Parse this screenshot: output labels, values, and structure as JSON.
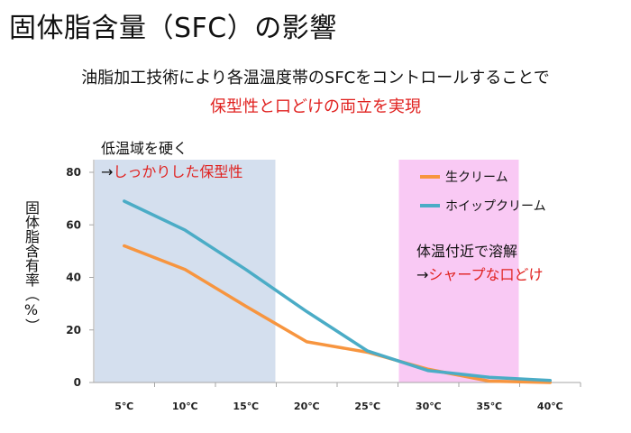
{
  "title": "固体脂含量（SFC）の影響",
  "subtitle_line1": "油脂加工技術により各温温度帯のSFCをコントロールすることで",
  "subtitle_line2": "保型性と口どけの両立を実現",
  "note_left": {
    "line1": "低温域を硬く",
    "arrow": "→",
    "highlight": "しっかりした保型性"
  },
  "note_right": {
    "line1": "体温付近で溶解",
    "arrow": "→",
    "highlight": "シャープな口どけ"
  },
  "colors": {
    "cream": "#f7953f",
    "whip": "#4bacc6",
    "low_band": "#d4dfee",
    "body_band": "#f9c9f4",
    "red_text": "#e0211f"
  },
  "chart_data": {
    "type": "line",
    "categories": [
      "5℃",
      "10℃",
      "15℃",
      "20℃",
      "25℃",
      "30℃",
      "35℃",
      "40℃"
    ],
    "ylabel": "固体脂含有率（%）",
    "ylim": [
      0,
      80
    ],
    "yticks": [
      "0",
      "20",
      "40",
      "60",
      "80"
    ],
    "grid": false,
    "legend_position": "top-right",
    "series": [
      {
        "name": "生クリーム",
        "color": "#f7953f",
        "values": [
          52,
          43,
          29,
          15.5,
          11.5,
          5,
          0.5,
          0
        ]
      },
      {
        "name": "ホイップクリーム",
        "color": "#4bacc6",
        "values": [
          69,
          58,
          43,
          27,
          12,
          4.5,
          2,
          0.8
        ]
      }
    ],
    "shaded_regions": [
      {
        "from": "5℃",
        "to": "15℃",
        "color": "#d4dfee"
      },
      {
        "from": "30℃",
        "to": "35℃",
        "color": "#f9c9f4"
      }
    ]
  }
}
